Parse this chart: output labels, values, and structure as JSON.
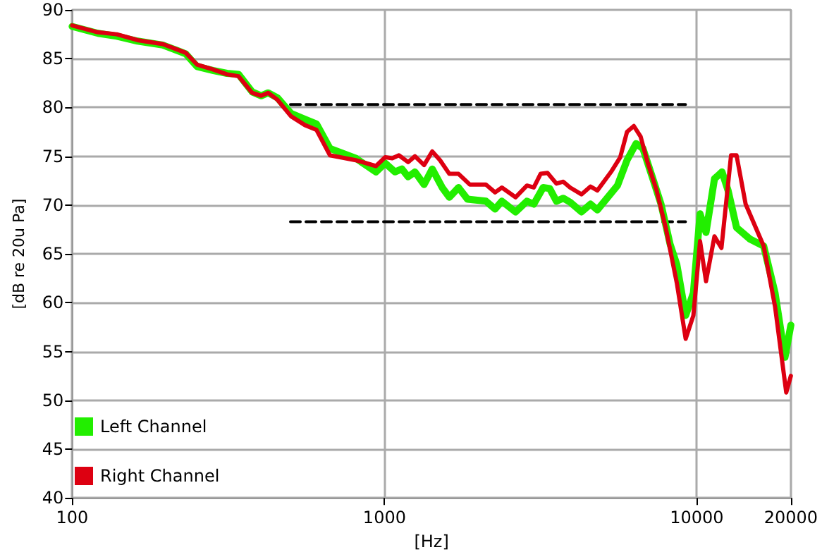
{
  "chart_data": {
    "type": "line",
    "xlabel": "[Hz]",
    "ylabel": "[dB re 20u Pa]",
    "log": "x",
    "xlim": [
      100,
      20000
    ],
    "xticks": [
      100,
      1000,
      10000,
      20000
    ],
    "ylim": [
      40,
      90
    ],
    "yticks": [
      40,
      45,
      50,
      55,
      60,
      65,
      70,
      75,
      80,
      85,
      90
    ],
    "grid": true,
    "legend": "bottom left",
    "marker": "none",
    "line_style": "solid",
    "series": [
      {
        "name": "Left Channel",
        "color": "#22ee00",
        "x": [
          100,
          121,
          139,
          162,
          195,
          231,
          251,
          282,
          313,
          341,
          377,
          403,
          424,
          454,
          502,
          556,
          606,
          669,
          809,
          939,
          1005,
          1080,
          1137,
          1190,
          1252,
          1339,
          1422,
          1530,
          1613,
          1726,
          1845,
          2112,
          2260,
          2376,
          2628,
          2858,
          3006,
          3220,
          3380,
          3552,
          3736,
          3929,
          4272,
          4567,
          4803,
          5570,
          5977,
          6390,
          6720,
          7180,
          7680,
          8210,
          8630,
          9210,
          9750,
          10240,
          10700,
          11390,
          12040,
          12590,
          13400,
          14820,
          16370,
          17800,
          19150,
          20000
        ],
        "values": [
          88.3,
          87.6,
          87.3,
          86.8,
          86.4,
          85.5,
          84.2,
          83.8,
          83.5,
          83.4,
          81.6,
          81.2,
          81.5,
          81.0,
          79.4,
          78.8,
          78.3,
          75.8,
          74.8,
          73.4,
          74.3,
          73.4,
          73.7,
          72.9,
          73.4,
          72.1,
          73.7,
          71.8,
          70.8,
          71.8,
          70.6,
          70.4,
          69.6,
          70.4,
          69.3,
          70.4,
          70.1,
          71.8,
          71.7,
          70.4,
          70.7,
          70.3,
          69.3,
          70.1,
          69.5,
          72.0,
          74.6,
          76.3,
          75.8,
          73.0,
          70.1,
          66.0,
          63.9,
          58.7,
          61.0,
          69.1,
          67.2,
          72.7,
          73.4,
          71.5,
          67.7,
          66.5,
          65.8,
          61.0,
          54.4,
          57.7
        ]
      },
      {
        "name": "Right Channel",
        "color": "#dd0011",
        "x": [
          100,
          121,
          139,
          162,
          195,
          231,
          251,
          282,
          313,
          341,
          377,
          403,
          424,
          454,
          502,
          556,
          606,
          669,
          809,
          939,
          1005,
          1059,
          1112,
          1190,
          1252,
          1339,
          1422,
          1506,
          1613,
          1726,
          1877,
          2112,
          2260,
          2376,
          2628,
          2858,
          3006,
          3161,
          3325,
          3552,
          3736,
          3929,
          4272,
          4567,
          4803,
          5313,
          5685,
          5977,
          6285,
          6610,
          6951,
          7434,
          7948,
          8630,
          9210,
          9750,
          10240,
          10700,
          11390,
          11990,
          12870,
          13400,
          14330,
          16370,
          17800,
          19330,
          20000
        ],
        "values": [
          88.4,
          87.7,
          87.5,
          86.9,
          86.5,
          85.6,
          84.4,
          83.9,
          83.4,
          83.2,
          81.5,
          81.2,
          81.5,
          80.8,
          79.1,
          78.2,
          77.7,
          75.1,
          74.6,
          74.0,
          74.9,
          74.8,
          75.1,
          74.4,
          75.0,
          74.1,
          75.5,
          74.6,
          73.2,
          73.2,
          72.1,
          72.1,
          71.3,
          71.8,
          70.8,
          72.0,
          71.8,
          73.2,
          73.3,
          72.2,
          72.4,
          71.8,
          71.1,
          71.9,
          71.5,
          73.4,
          74.9,
          77.5,
          78.1,
          77.0,
          74.4,
          71.5,
          67.7,
          62.0,
          56.3,
          58.7,
          66.3,
          62.2,
          66.8,
          65.6,
          75.1,
          75.1,
          70.1,
          65.8,
          59.6,
          50.8,
          52.5
        ]
      },
      {
        "color": "#000000",
        "line_style": "dashed",
        "x": [
          500,
          9200
        ],
        "values": [
          80.3,
          80.3
        ]
      },
      {
        "color": "#000000",
        "line_style": "dashed",
        "x": [
          500,
          9200
        ],
        "values": [
          68.3,
          68.3
        ]
      }
    ]
  }
}
